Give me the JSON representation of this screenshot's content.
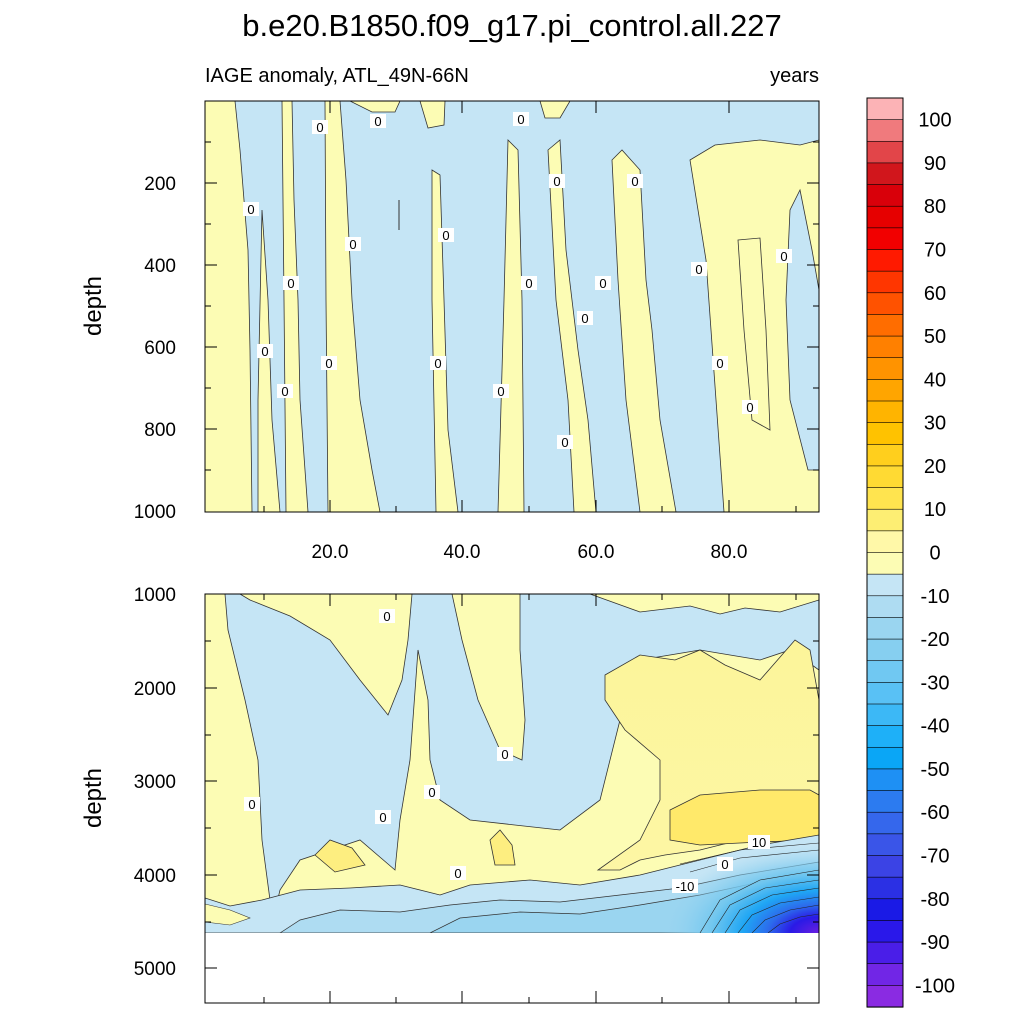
{
  "chart_data": {
    "type": "contour",
    "title": "b.e20.B1850.f09_g17.pi_control.all.227",
    "subtitle_left": "IAGE anomaly, ATL_49N-66N",
    "subtitle_right": "years",
    "xlim": [
      1,
      94
    ],
    "colorbar": {
      "levels": [
        -100,
        -95,
        -90,
        -85,
        -80,
        -75,
        -70,
        -65,
        -60,
        -55,
        -50,
        -45,
        -40,
        -35,
        -30,
        -25,
        -20,
        -15,
        -10,
        -5,
        0,
        5,
        10,
        15,
        20,
        25,
        30,
        35,
        40,
        45,
        50,
        55,
        60,
        65,
        70,
        75,
        80,
        85,
        90,
        95,
        100
      ],
      "labels": [
        "100",
        "90",
        "80",
        "70",
        "60",
        "50",
        "40",
        "30",
        "20",
        "10",
        "0",
        "-10",
        "-20",
        "-30",
        "-40",
        "-50",
        "-60",
        "-70",
        "-80",
        "-90",
        "-100"
      ],
      "colors_top_to_bottom": [
        "#fcb3b6",
        "#f07a7d",
        "#e24549",
        "#d1161c",
        "#d9000a",
        "#e60000",
        "#f20000",
        "#ff1a00",
        "#ff3600",
        "#ff5200",
        "#ff6d00",
        "#ff8000",
        "#ff9300",
        "#ffa500",
        "#ffb400",
        "#ffc200",
        "#ffcf1d",
        "#ffda33",
        "#ffe44f",
        "#fdee73",
        "#fff8a8",
        "#fcfcb4",
        "#c5e5f5",
        "#aedcf2",
        "#9ad5f0",
        "#86cff0",
        "#70c8f2",
        "#59c1f5",
        "#3cb8f6",
        "#1eb0f8",
        "#0aa6f6",
        "#1e90f4",
        "#2c7bf0",
        "#3567ec",
        "#3a55e8",
        "#3b43e5",
        "#2b30e4",
        "#1a1ae6",
        "#2a18ea",
        "#4a1ee8",
        "#7126e6",
        "#8a2be2"
      ]
    },
    "panels": [
      {
        "xticks": [
          "20.0",
          "40.0",
          "60.0",
          "80.0"
        ],
        "ylabel": "depth",
        "yticks": [
          "200",
          "400",
          "600",
          "800",
          "1000"
        ],
        "ylim": [
          0,
          1000
        ],
        "contour_labels": [
          "0",
          "0",
          "0",
          "0",
          "0",
          "0",
          "0",
          "0",
          "0",
          "0",
          "0",
          "0",
          "0",
          "0",
          "0",
          "0",
          "0",
          "0",
          "0",
          "0",
          "0",
          "0"
        ]
      },
      {
        "ylabel": "depth",
        "yticks": [
          "1000",
          "2000",
          "3000",
          "4000",
          "5000"
        ],
        "ylim": [
          1000,
          5400
        ],
        "contour_labels": [
          "0",
          "0",
          "0",
          "0",
          "0",
          "0",
          "0",
          "10",
          "-10"
        ]
      }
    ]
  }
}
